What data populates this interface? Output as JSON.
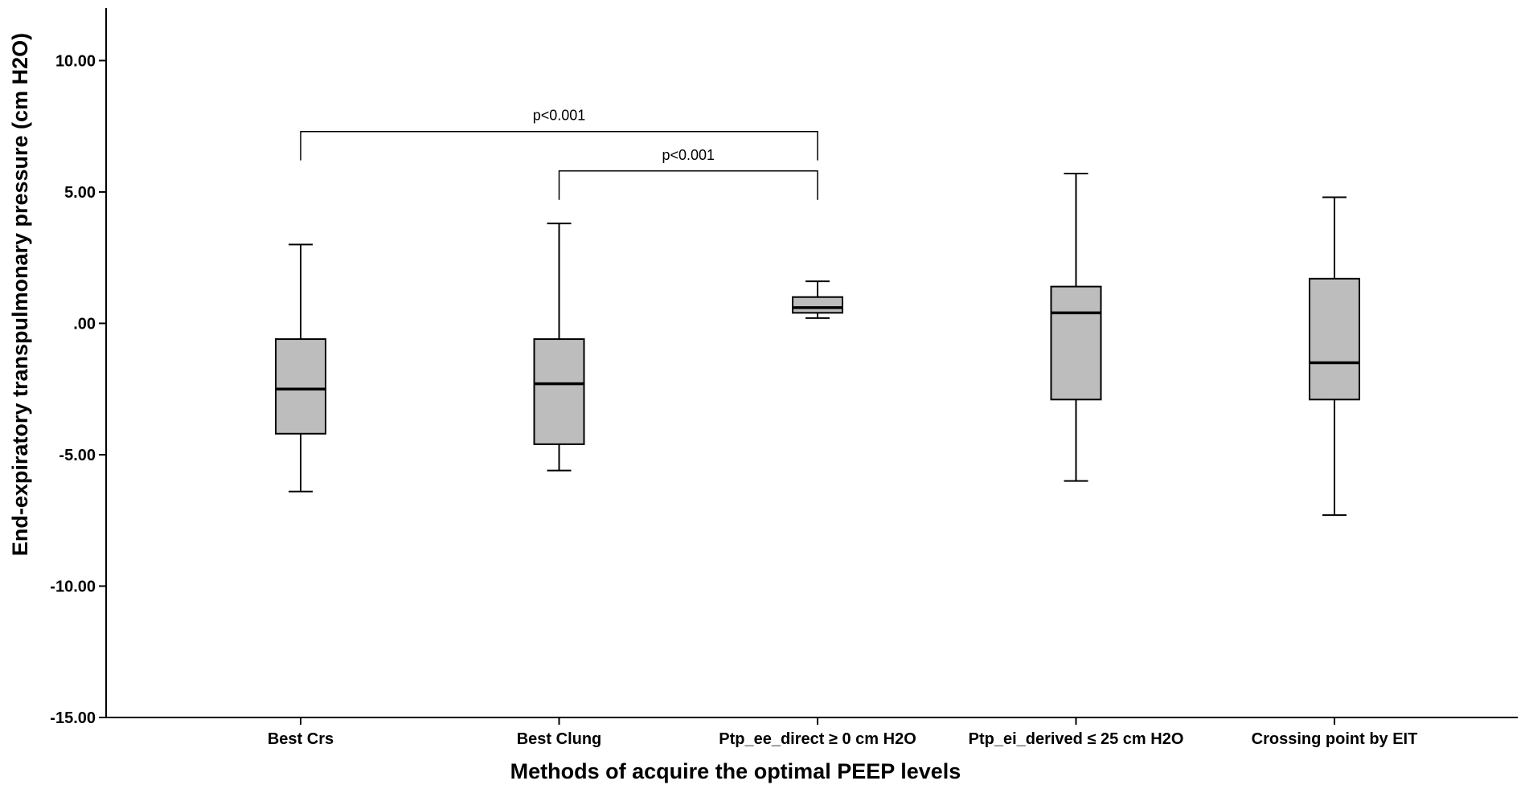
{
  "chart_data": {
    "type": "boxplot",
    "title": "",
    "xlabel": "Methods of acquire the optimal PEEP levels",
    "ylabel": "End-expiratory transpulmonary pressure (cm H2O)",
    "ylim": [
      -15,
      12
    ],
    "yticks": [
      10,
      5,
      0,
      -5,
      -10,
      -15
    ],
    "ytick_labels": [
      "10.00",
      "5.00",
      ".00",
      "-5.00",
      "-10.00",
      "-15.00"
    ],
    "grid": false,
    "legend": "none",
    "box_color": "#bdbdbd",
    "line_color": "#000000",
    "categories": [
      "Best Crs",
      "Best Clung",
      "Ptp_ee_direct ≥ 0 cm H2O",
      "Ptp_ei_derived ≤ 25 cm H2O",
      "Crossing point by EIT"
    ],
    "boxes": [
      {
        "whisker_low": -6.4,
        "q1": -4.2,
        "median": -2.5,
        "q3": -0.6,
        "whisker_high": 3.0
      },
      {
        "whisker_low": -5.6,
        "q1": -4.6,
        "median": -2.3,
        "q3": -0.6,
        "whisker_high": 3.8
      },
      {
        "whisker_low": 0.2,
        "q1": 0.4,
        "median": 0.6,
        "q3": 1.0,
        "whisker_high": 1.6
      },
      {
        "whisker_low": -6.0,
        "q1": -2.9,
        "median": 0.4,
        "q3": 1.4,
        "whisker_high": 5.7
      },
      {
        "whisker_low": -7.3,
        "q1": -2.9,
        "median": -1.5,
        "q3": 1.7,
        "whisker_high": 4.8
      }
    ],
    "significance": [
      {
        "from": 0,
        "to": 2,
        "y": 7.3,
        "drop_from": 6.2,
        "drop_to": 6.2,
        "label": "p<0.001"
      },
      {
        "from": 1,
        "to": 2,
        "y": 5.8,
        "drop_from": 4.7,
        "drop_to": 4.7,
        "label": "p<0.001"
      }
    ]
  }
}
